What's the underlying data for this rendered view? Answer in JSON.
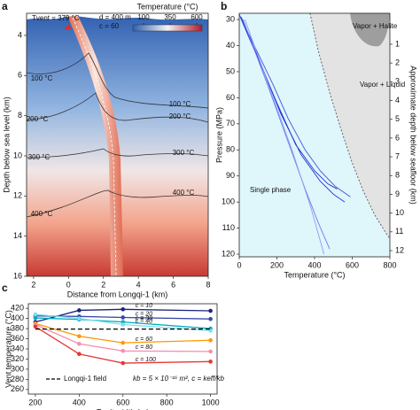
{
  "chart_data": [
    {
      "type": "heatmap",
      "panel": "a",
      "x_label": "Distance from Longqi-1 (km)",
      "y_label": "Depth below sea level (km)",
      "xlim": [
        -2.4,
        8
      ],
      "xticks": [
        {
          "value": -2,
          "label": "2"
        },
        0,
        2,
        4,
        6,
        8
      ],
      "ylim": [
        16,
        2.9
      ],
      "yticks": [
        4,
        6,
        8,
        10,
        12,
        14,
        16
      ],
      "colorbar_label": "Temperature (°C)",
      "clim": [
        0,
        650
      ],
      "cticks": [
        100,
        350,
        600
      ],
      "colors": [
        "#2f5fb0",
        "#f4f4f4",
        "#b2182b"
      ],
      "contours": [
        {
          "value": 100,
          "label": "100 °C"
        },
        {
          "value": 200,
          "label": "200 °C"
        },
        {
          "value": 300,
          "label": "300 °C"
        },
        {
          "value": 400,
          "label": "400 °C"
        }
      ],
      "annotations": [
        "Tvent = 379 °C",
        "d = 400 m",
        "c = 60"
      ]
    },
    {
      "type": "line",
      "panel": "b",
      "x_label": "Temperature (°C)",
      "y_label": "Pressure (MPa)",
      "y2_label": "Approximate depth below seafloor (km)",
      "xlim": [
        0,
        800
      ],
      "xticks": [
        0,
        200,
        400,
        600,
        800
      ],
      "ylim": [
        121,
        27.6
      ],
      "yticks": [
        30,
        40,
        50,
        60,
        70,
        80,
        90,
        100,
        110,
        120
      ],
      "y2lim": [
        12.33,
        -0.65
      ],
      "y2ticks": [
        1,
        2,
        3,
        4,
        5,
        6,
        7,
        8,
        9,
        10,
        11,
        12
      ],
      "annotations": [
        "Vapor + Halite",
        "Vapor + Liquid",
        "Single phase"
      ],
      "boundary": {
        "color": "#555",
        "x": [
          376,
          420,
          480,
          540,
          600,
          660,
          720,
          780,
          800
        ],
        "values": [
          27.6,
          42,
          58,
          72,
          85,
          96,
          105,
          112,
          114
        ]
      },
      "series": [
        {
          "color": "#1f2fd6",
          "x": [
            5,
            100,
            200,
            300,
            400,
            470,
            520
          ],
          "values": [
            29,
            45,
            62,
            78,
            88,
            93,
            95
          ]
        },
        {
          "color": "#1f2fd6",
          "x": [
            10,
            120,
            220,
            330,
            430,
            500,
            560
          ],
          "values": [
            29,
            48,
            66,
            82,
            92,
            97,
            100
          ]
        },
        {
          "color": "#3f54e0",
          "x": [
            0,
            80,
            180,
            260,
            350,
            430,
            510,
            590
          ],
          "values": [
            28,
            40,
            55,
            68,
            80,
            88,
            94,
            98
          ]
        },
        {
          "color": "#6a7cf0",
          "x": [
            20,
            150,
            250,
            350,
            420,
            480
          ],
          "values": [
            30,
            55,
            75,
            95,
            108,
            118
          ]
        },
        {
          "color": "#8d9bf5",
          "x": [
            30,
            180,
            280,
            380,
            450
          ],
          "values": [
            30,
            60,
            80,
            102,
            120
          ]
        }
      ]
    },
    {
      "type": "line",
      "panel": "c",
      "x_label": "Fault width (m)",
      "y_label": "Vent temperature (°C)",
      "xlim": [
        168,
        1030
      ],
      "xticks": [
        200,
        400,
        600,
        800,
        1000
      ],
      "ylim": [
        251,
        429
      ],
      "yticks": [
        260,
        280,
        300,
        320,
        340,
        360,
        380,
        400,
        420
      ],
      "annotation": "kb = 5 × 10⁻¹⁶ m², c = keff/kb",
      "series": [
        {
          "name": "c = 10",
          "color": "#1a237e",
          "x": [
            200,
            400,
            600,
            1000
          ],
          "values": [
            393,
            416,
            418,
            415
          ]
        },
        {
          "name": "c = 20",
          "color": "#3949ab",
          "x": [
            200,
            400,
            600,
            1000
          ],
          "values": [
            405,
            404,
            402,
            399
          ]
        },
        {
          "name": "c = 30",
          "color": "#00acc1",
          "x": [
            200,
            400,
            600,
            1000
          ],
          "values": [
            401,
            398,
            393,
            380
          ]
        },
        {
          "name": "c = 40",
          "color": "#80deea",
          "x": [
            200,
            400,
            600,
            1000
          ],
          "values": [
            408,
            400,
            388,
            376
          ]
        },
        {
          "name": "c = 60",
          "color": "#ff9800",
          "x": [
            200,
            400,
            600,
            1000
          ],
          "values": [
            390,
            365,
            352,
            357
          ]
        },
        {
          "name": "c = 80",
          "color": "#f48fb1",
          "x": [
            200,
            400,
            600,
            1000
          ],
          "values": [
            388,
            350,
            336,
            335
          ]
        },
        {
          "name": "c = 100",
          "color": "#e53935",
          "x": [
            200,
            400,
            600,
            1000
          ],
          "values": [
            384,
            330,
            312,
            315
          ]
        },
        {
          "name": "Longqi-1 field",
          "color": "#000",
          "dash": true,
          "x": [
            200,
            1000
          ],
          "values": [
            379,
            379
          ]
        }
      ]
    }
  ]
}
